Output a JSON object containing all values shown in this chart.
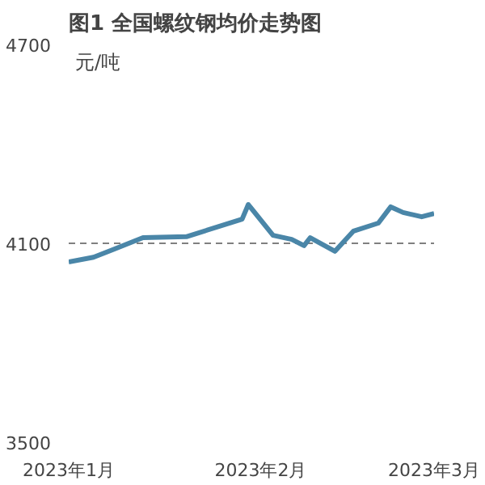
{
  "chart_data": {
    "type": "line",
    "title": "图1 全国螺纹钢均价走势图",
    "ylabel": "元/吨",
    "x": [
      "2023-01-01",
      "2023-01-05",
      "2023-01-08",
      "2023-01-13",
      "2023-01-20",
      "2023-01-29",
      "2023-01-30",
      "2023-02-03",
      "2023-02-06",
      "2023-02-08",
      "2023-02-09",
      "2023-02-13",
      "2023-02-16",
      "2023-02-20",
      "2023-02-22",
      "2023-02-24",
      "2023-02-27",
      "2023-03-01"
    ],
    "series": [
      {
        "color": "#4a86a8",
        "values": [
          4044,
          4058,
          4080,
          4117,
          4120,
          4173,
          4217,
          4124,
          4112,
          4093,
          4117,
          4076,
          4137,
          4161,
          4210,
          4193,
          4180,
          4190
        ]
      }
    ],
    "xlim": [
      "2023-01-01",
      "2023-03-01"
    ],
    "xticks": [
      {
        "value": "2023-01-01",
        "label": "2023年1月"
      },
      {
        "value": "2023-02-01",
        "label": "2023年2月"
      },
      {
        "value": "2023-03-01",
        "label": "2023年3月"
      }
    ],
    "ylim": [
      3500,
      4700
    ],
    "yticks": [
      3500,
      4100,
      4700
    ],
    "grid": "y",
    "marker": "none",
    "line_style": "solid"
  }
}
